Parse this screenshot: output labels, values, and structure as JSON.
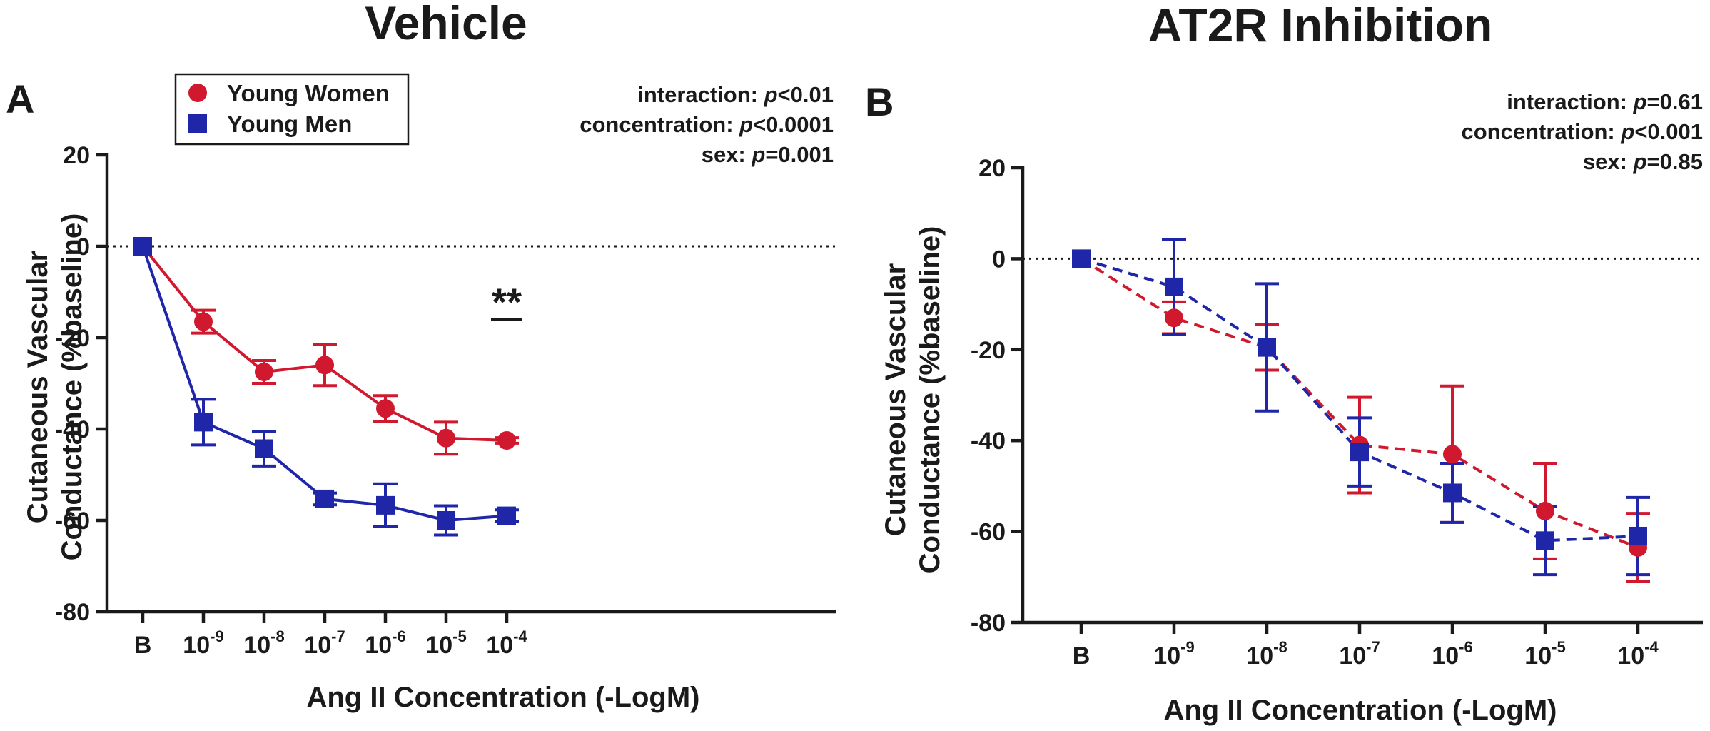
{
  "legend": {
    "items": [
      {
        "label": "Young Women",
        "color": "#d0192e",
        "marker": "circle"
      },
      {
        "label": "Young Men",
        "color": "#1f26a8",
        "marker": "square"
      }
    ]
  },
  "chart_data": [
    {
      "panel": "A",
      "type": "line",
      "title": "Vehicle",
      "xlabel": "Ang II Concentration (-LogM)",
      "ylabel_line1": "Cutaneous Vascular",
      "ylabel_line2": "Conductance (%baseline)",
      "ylim": [
        -80,
        20
      ],
      "yticks": [
        20,
        0,
        -20,
        -40,
        -60,
        -80
      ],
      "categories": [
        {
          "base": "B",
          "exp": ""
        },
        {
          "base": "10",
          "exp": "-9"
        },
        {
          "base": "10",
          "exp": "-8"
        },
        {
          "base": "10",
          "exp": "-7"
        },
        {
          "base": "10",
          "exp": "-6"
        },
        {
          "base": "10",
          "exp": "-5"
        },
        {
          "base": "10",
          "exp": "-4"
        }
      ],
      "line_style": "solid",
      "reference_line": 0,
      "stats": [
        {
          "label": "interaction: ",
          "p": "p",
          "value": "<0.01"
        },
        {
          "label": "concentration: ",
          "p": "p",
          "value": "<0.0001"
        },
        {
          "label": "sex: ",
          "p": "p",
          "value": "=0.001"
        }
      ],
      "significance": {
        "label": "**",
        "category_index": 6,
        "y": -16
      },
      "series": [
        {
          "name": "Young Women",
          "color": "#d0192e",
          "marker": "circle",
          "values": [
            0,
            -16.5,
            -27.5,
            -26,
            -35.5,
            -42,
            -42.5
          ],
          "errors": [
            0,
            2.5,
            2.5,
            4.5,
            2.8,
            3.5,
            0.6
          ]
        },
        {
          "name": "Young Men",
          "color": "#1f26a8",
          "marker": "square",
          "values": [
            0,
            -38.5,
            -44.3,
            -55.3,
            -56.7,
            -60,
            -59
          ],
          "errors": [
            0,
            5,
            3.8,
            1.3,
            4.7,
            3.2,
            1.3
          ]
        }
      ]
    },
    {
      "panel": "B",
      "type": "line",
      "title": "AT2R Inhibition",
      "xlabel": "Ang II Concentration (-LogM)",
      "ylabel_line1": "Cutaneous Vascular",
      "ylabel_line2": "Conductance (%baseline)",
      "ylim": [
        -80,
        20
      ],
      "yticks": [
        20,
        0,
        -20,
        -40,
        -60,
        -80
      ],
      "categories": [
        {
          "base": "B",
          "exp": ""
        },
        {
          "base": "10",
          "exp": "-9"
        },
        {
          "base": "10",
          "exp": "-8"
        },
        {
          "base": "10",
          "exp": "-7"
        },
        {
          "base": "10",
          "exp": "-6"
        },
        {
          "base": "10",
          "exp": "-5"
        },
        {
          "base": "10",
          "exp": "-4"
        }
      ],
      "line_style": "dashed",
      "reference_line": 0,
      "stats": [
        {
          "label": "interaction: ",
          "p": "p",
          "value": "=0.61"
        },
        {
          "label": "concentration: ",
          "p": "p",
          "value": "<0.001"
        },
        {
          "label": "sex: ",
          "p": "p",
          "value": "=0.85"
        }
      ],
      "series": [
        {
          "name": "Young Women",
          "color": "#d0192e",
          "marker": "circle",
          "values": [
            0,
            -13,
            -19.5,
            -41,
            -43,
            -55.5,
            -63.5
          ],
          "errors": [
            0,
            3.5,
            5,
            10.5,
            15,
            10.5,
            7.5
          ]
        },
        {
          "name": "Young Men",
          "color": "#1f26a8",
          "marker": "square",
          "values": [
            0,
            -6.2,
            -19.5,
            -42.5,
            -51.5,
            -62,
            -61
          ],
          "errors": [
            0,
            10.5,
            14,
            7.5,
            6.5,
            7.5,
            8.5
          ]
        }
      ]
    }
  ]
}
